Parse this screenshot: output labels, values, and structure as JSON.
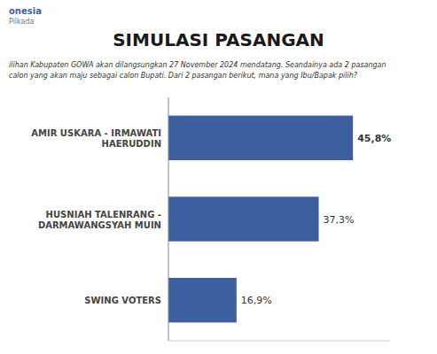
{
  "chart_data": {
    "type": "bar",
    "orientation": "horizontal",
    "title": "SIMULASI PASANGAN",
    "subtitle": [
      "ilihan Kabupaten GOWA akan dilangsungkan 27 November 2024 mendatang. Seandainya ada 2 pasangan",
      "calon yang akan maju sebagai calon Bupati. Dari 2 pasangan berikut, mana yang Ibu/Bapak pilih?"
    ],
    "annotations": [
      "onesia",
      "Pilkada"
    ],
    "categories": [
      "AMIR USKARA - IRMAWATI\nHAERUDDIN",
      "HUSNIAH TALENRANG -\nDARMAWANGSYAH MUIN",
      "SWING VOTERS"
    ],
    "values": [
      45.8,
      37.3,
      16.9
    ],
    "value_labels": [
      "45,8%",
      "37,3%",
      "16,9%"
    ],
    "data_labels": true,
    "color": "#3d5fa0",
    "xlim": [
      0,
      55
    ],
    "tick_labels": "y",
    "grid": false
  }
}
